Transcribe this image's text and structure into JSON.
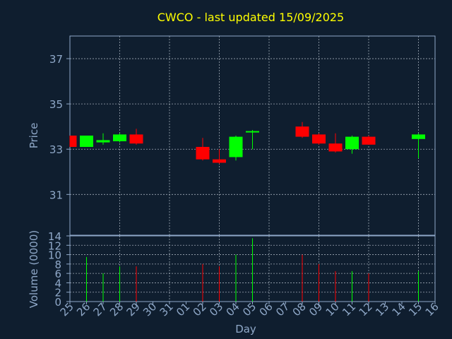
{
  "chart_data": {
    "type": "candlestick",
    "title": "CWCO - last updated 15/09/2025",
    "xlabel": "Day",
    "price_panel": {
      "ylabel": "Price",
      "ylim": [
        29.2,
        38.0
      ],
      "yticks": [
        31,
        33,
        35,
        37
      ]
    },
    "volume_panel": {
      "ylabel": "Volume (0000)",
      "ylim": [
        0,
        14
      ],
      "yticks": [
        0,
        2,
        4,
        6,
        8,
        10,
        12,
        14
      ]
    },
    "x_tick_labels": [
      "25",
      "26",
      "27",
      "28",
      "29",
      "30",
      "31",
      "01",
      "02",
      "03",
      "04",
      "05",
      "06",
      "07",
      "08",
      "09",
      "10",
      "11",
      "12",
      "13",
      "14",
      "15",
      "16"
    ],
    "grid": true,
    "colors": {
      "up": "#00ff00",
      "down": "#ff0000",
      "title": "#ffff00",
      "axis_text": "#8fa8c8",
      "background": "#0f1e2f"
    },
    "candles": [
      {
        "day": "25",
        "open": 33.6,
        "high": 33.6,
        "low": 33.1,
        "close": 33.1,
        "volume": 0
      },
      {
        "day": "26",
        "open": 33.1,
        "high": 33.6,
        "low": 33.1,
        "close": 33.6,
        "volume": 9.5
      },
      {
        "day": "27",
        "open": 33.3,
        "high": 33.7,
        "low": 33.2,
        "close": 33.4,
        "volume": 6.0
      },
      {
        "day": "28",
        "open": 33.35,
        "high": 33.7,
        "low": 33.3,
        "close": 33.65,
        "volume": 7.5
      },
      {
        "day": "29",
        "open": 33.65,
        "high": 33.9,
        "low": 33.2,
        "close": 33.25,
        "volume": 7.5
      },
      {
        "day": "02",
        "open": 33.1,
        "high": 33.5,
        "low": 32.5,
        "close": 32.55,
        "volume": 8.0
      },
      {
        "day": "03",
        "open": 32.55,
        "high": 33.0,
        "low": 32.35,
        "close": 32.4,
        "volume": 7.5
      },
      {
        "day": "04",
        "open": 32.65,
        "high": 33.6,
        "low": 32.5,
        "close": 33.55,
        "volume": 10.0
      },
      {
        "day": "05",
        "open": 33.75,
        "high": 33.85,
        "low": 33.0,
        "close": 33.8,
        "volume": 13.5
      },
      {
        "day": "08",
        "open": 34.0,
        "high": 34.2,
        "low": 33.5,
        "close": 33.55,
        "volume": 10.0
      },
      {
        "day": "09",
        "open": 33.65,
        "high": 33.7,
        "low": 33.2,
        "close": 33.25,
        "volume": 8.0
      },
      {
        "day": "10",
        "open": 33.25,
        "high": 33.7,
        "low": 32.85,
        "close": 32.9,
        "volume": 6.5
      },
      {
        "day": "11",
        "open": 33.0,
        "high": 33.6,
        "low": 32.8,
        "close": 33.55,
        "volume": 6.5
      },
      {
        "day": "12",
        "open": 33.55,
        "high": 33.6,
        "low": 33.2,
        "close": 33.2,
        "volume": 6.0
      },
      {
        "day": "15",
        "open": 33.45,
        "high": 33.7,
        "low": 32.6,
        "close": 33.65,
        "volume": 6.5
      }
    ]
  }
}
